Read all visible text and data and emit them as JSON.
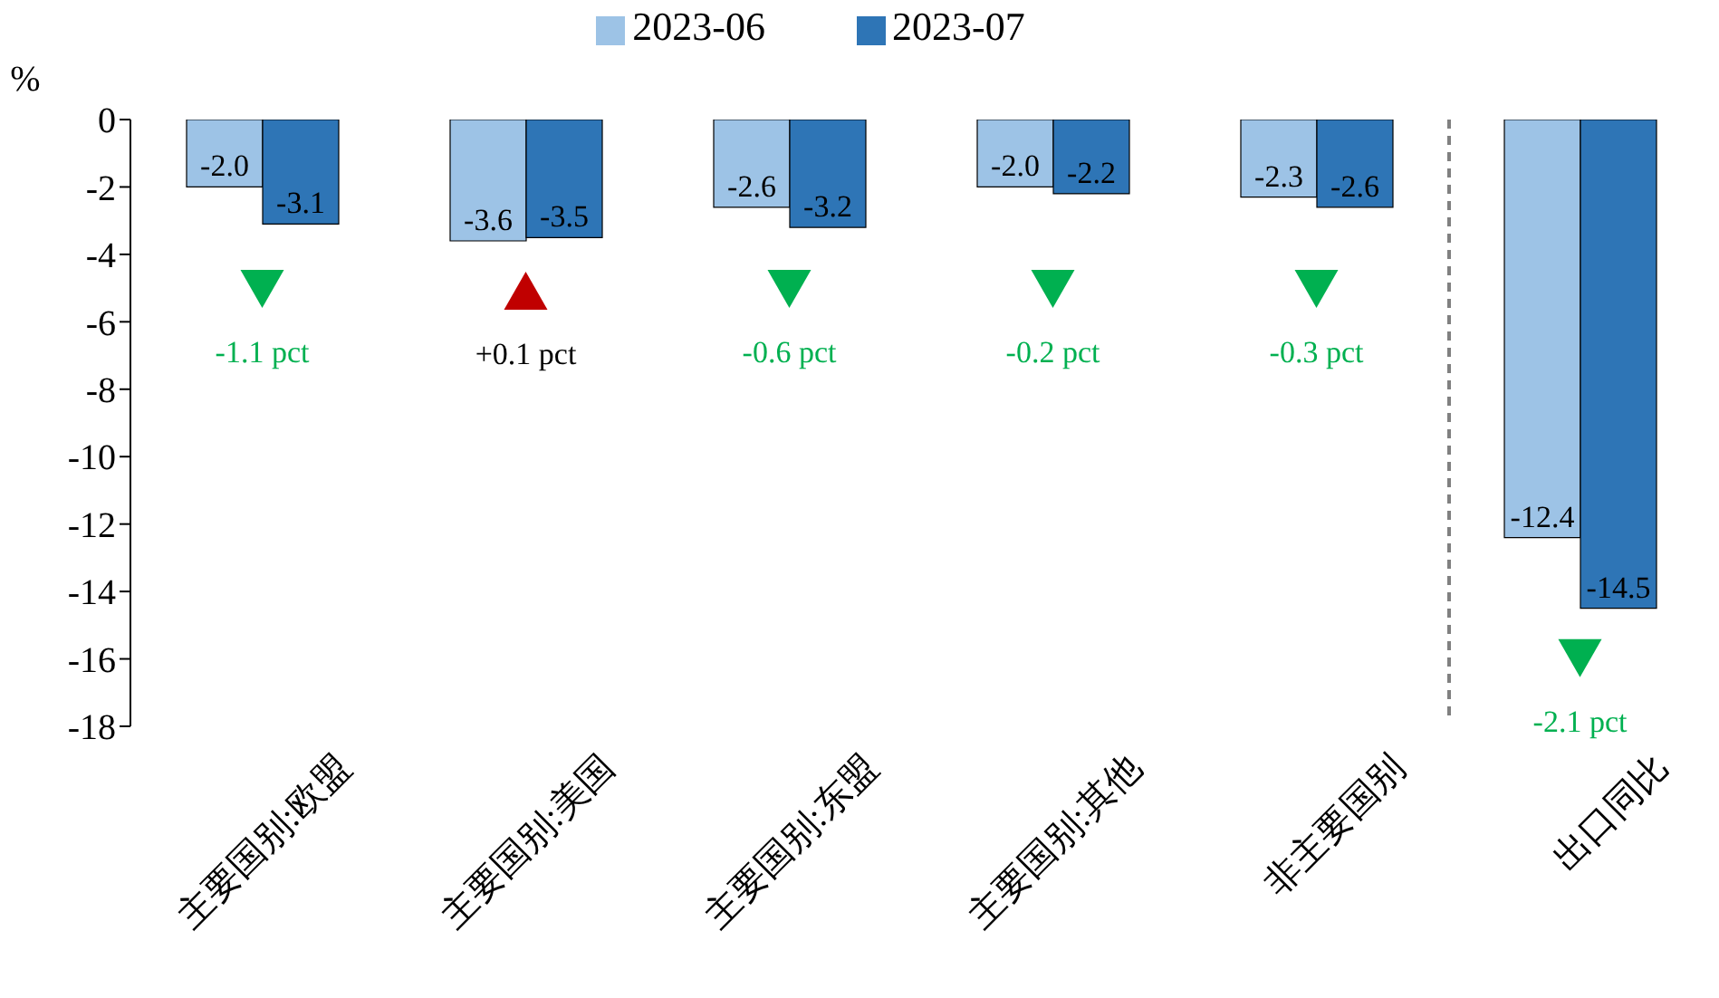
{
  "chart_data": {
    "type": "bar",
    "ylabel": "%",
    "categories": [
      "主要国别:欧盟",
      "主要国别:美国",
      "主要国别:东盟",
      "主要国别:其他",
      "非主要国别",
      "出口同比"
    ],
    "series": [
      {
        "name": "2023-06",
        "color": "#9dc3e6",
        "values": [
          -2.0,
          -3.6,
          -2.6,
          -2.0,
          -2.3,
          -12.4
        ],
        "value_labels": [
          "-2.0",
          "-3.6",
          "-2.6",
          "-2.0",
          "-2.3",
          "-12.4"
        ]
      },
      {
        "name": "2023-07",
        "color": "#2e75b6",
        "values": [
          -3.1,
          -3.5,
          -3.2,
          -2.2,
          -2.6,
          -14.5
        ],
        "value_labels": [
          "-3.1",
          "-3.5",
          "-3.2",
          "-2.2",
          "-2.6",
          "-14.5"
        ]
      }
    ],
    "ylim": [
      -18,
      0
    ],
    "yticks": [
      0,
      -2,
      -4,
      -6,
      -8,
      -10,
      -12,
      -14,
      -16,
      -18
    ],
    "grid": false,
    "legend": "top",
    "data_labels": true,
    "annotations": [
      "-1.1 pct",
      "+0.1 pct",
      "-0.6 pct",
      "-0.2 pct",
      "-0.3 pct",
      "-2.1 pct"
    ]
  }
}
